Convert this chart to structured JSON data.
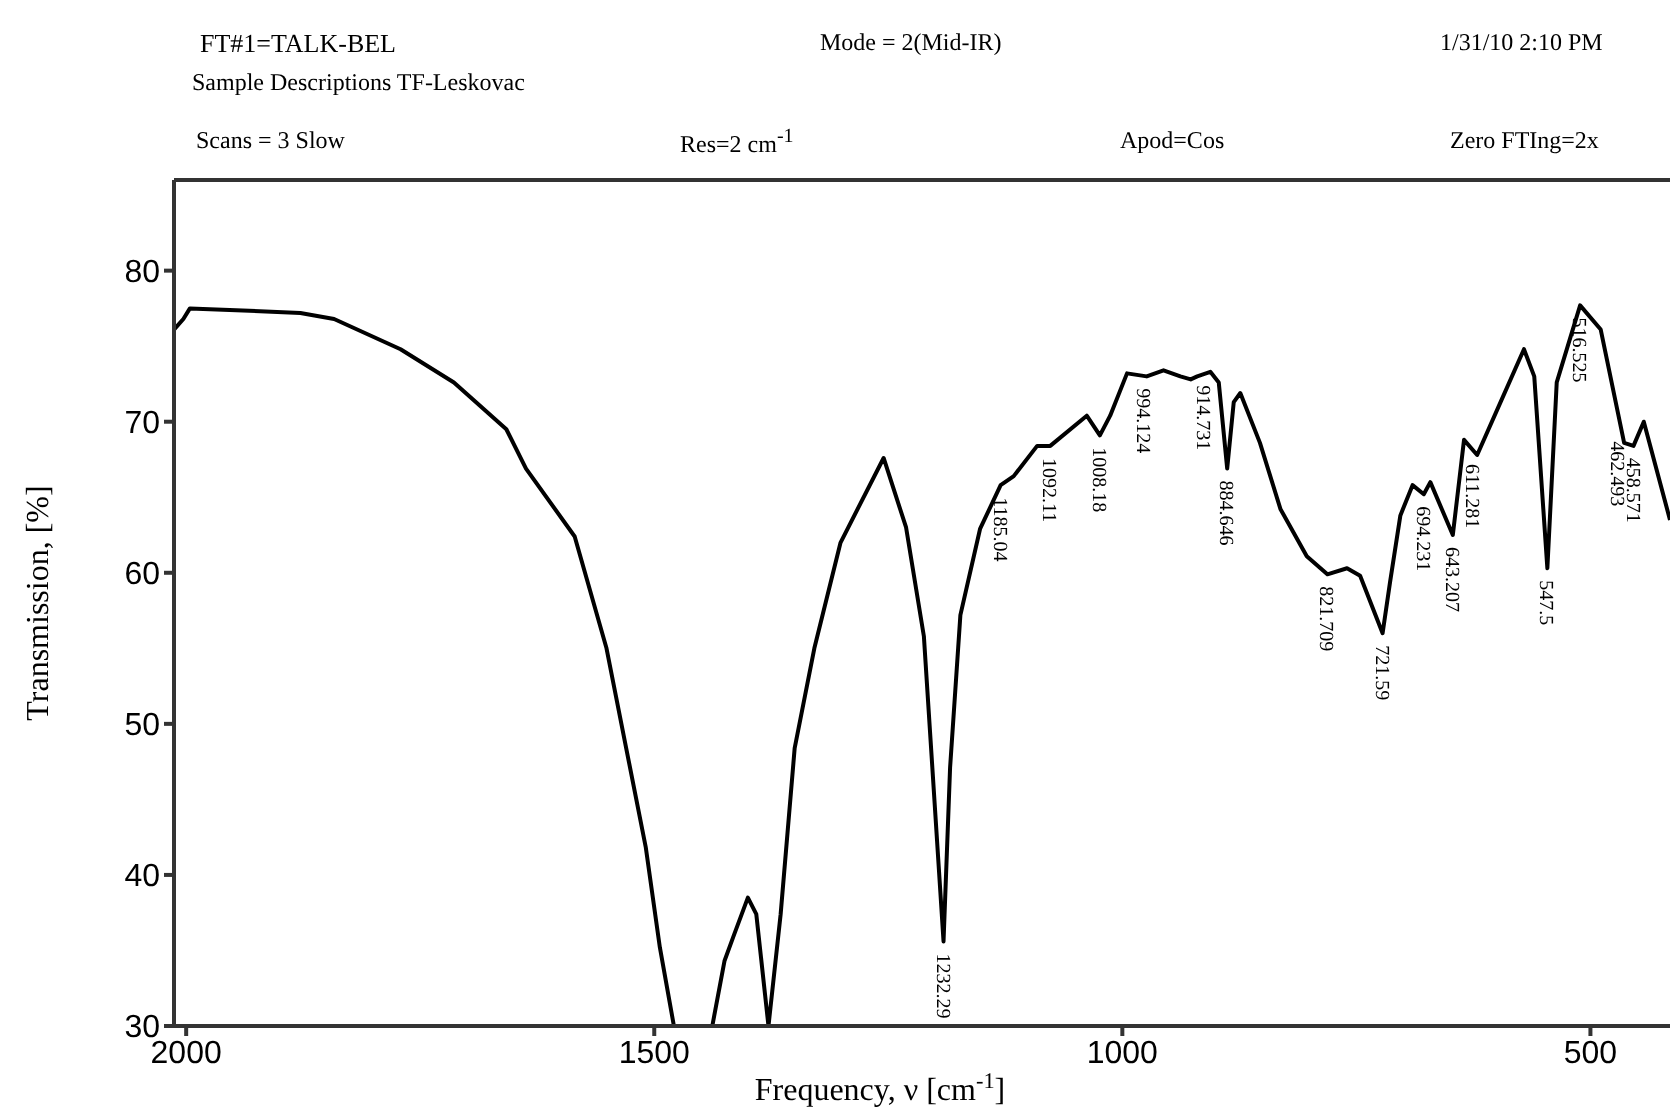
{
  "chart_data": {
    "type": "line",
    "title": "FT#1=TALK-BEL",
    "xlabel": "Frequency, ν [cm$^{-1}$]",
    "ylabel": "Transmission, [%]",
    "xlim": [
      2013,
      415
    ],
    "xticks": [
      2000,
      1500,
      1000,
      500
    ],
    "ylim": [
      30,
      86
    ],
    "yticks": [
      30,
      40,
      50,
      60,
      70,
      80
    ],
    "marker": "none",
    "line_style": "solid",
    "annotations": [
      "Mode = 2(Mid-IR)",
      "1/31/10 2:10 PM",
      "Sample Descriptions TF-Leskovac",
      "Scans = 3 Slow",
      "Res=2 cm$^{-1}$",
      "Apod=Cos",
      "Zero FTIng=2x",
      {
        "text": "1232.29",
        "x": 1191,
        "y": 35.6
      },
      {
        "text": "1185.04",
        "x": 1130,
        "y": 65.8
      },
      {
        "text": "1092.11",
        "x": 1077,
        "y": 68.4
      },
      {
        "text": "1008.18",
        "x": 1024,
        "y": 69.1
      },
      {
        "text": "994.124",
        "x": 977,
        "y": 73.0
      },
      {
        "text": "914.731",
        "x": 913,
        "y": 73.2
      },
      {
        "text": "884.646",
        "x": 888,
        "y": 66.9
      },
      {
        "text": "821.709",
        "x": 781,
        "y": 59.9
      },
      {
        "text": "721.59",
        "x": 722,
        "y": 56.0
      },
      {
        "text": "694.231",
        "x": 678,
        "y": 65.2
      },
      {
        "text": "643.207",
        "x": 647,
        "y": 62.5
      },
      {
        "text": "611.281",
        "x": 625,
        "y": 68.0
      },
      {
        "text": "547.5",
        "x": 546,
        "y": 60.3
      },
      {
        "text": "516.525",
        "x": 511,
        "y": 77.7
      },
      {
        "text": "462.493",
        "x": 471,
        "y": 69.5
      },
      {
        "text": "458.571",
        "x": 454,
        "y": 68.4
      }
    ],
    "series": [
      {
        "color": "#000000",
        "x": [
          2013,
          2003,
          1996,
          1878,
          1842,
          1771,
          1714,
          1658,
          1637,
          1585,
          1551,
          1530,
          1509,
          1494,
          1479,
          1460,
          1438,
          1425,
          1415,
          1400,
          1391,
          1378,
          1365,
          1350,
          1329,
          1301,
          1255,
          1231,
          1212,
          1191,
          1184,
          1173,
          1152,
          1130,
          1116,
          1091,
          1077,
          1038,
          1024,
          1013,
          995,
          974,
          956,
          938,
          927,
          920,
          906,
          897,
          888,
          881,
          874,
          853,
          831,
          803,
          781,
          760,
          746,
          722,
          714,
          703,
          690,
          678,
          671,
          647,
          635,
          621,
          596,
          571,
          560,
          546,
          536,
          511,
          489,
          464,
          454,
          443,
          415
        ],
        "values": [
          76.1,
          76.8,
          77.5,
          77.2,
          76.8,
          74.8,
          72.6,
          69.5,
          66.9,
          62.4,
          55.0,
          48.4,
          41.8,
          35.2,
          30,
          null,
          30,
          34.3,
          36.0,
          38.5,
          37.4,
          30,
          37.4,
          48.4,
          55.0,
          62.0,
          67.6,
          63.0,
          55.8,
          35.6,
          47.1,
          57.2,
          62.9,
          65.8,
          66.4,
          68.4,
          68.4,
          70.4,
          69.1,
          70.4,
          73.2,
          73.0,
          73.4,
          73.0,
          72.8,
          73.0,
          73.3,
          72.6,
          66.9,
          71.3,
          71.9,
          68.6,
          64.2,
          61.1,
          59.9,
          60.3,
          59.8,
          56.0,
          59.4,
          63.8,
          65.8,
          65.2,
          66.0,
          62.5,
          68.8,
          67.8,
          71.3,
          74.8,
          73.0,
          60.3,
          72.6,
          77.7,
          76.1,
          68.6,
          68.4,
          70.0,
          63.5
        ]
      }
    ]
  }
}
